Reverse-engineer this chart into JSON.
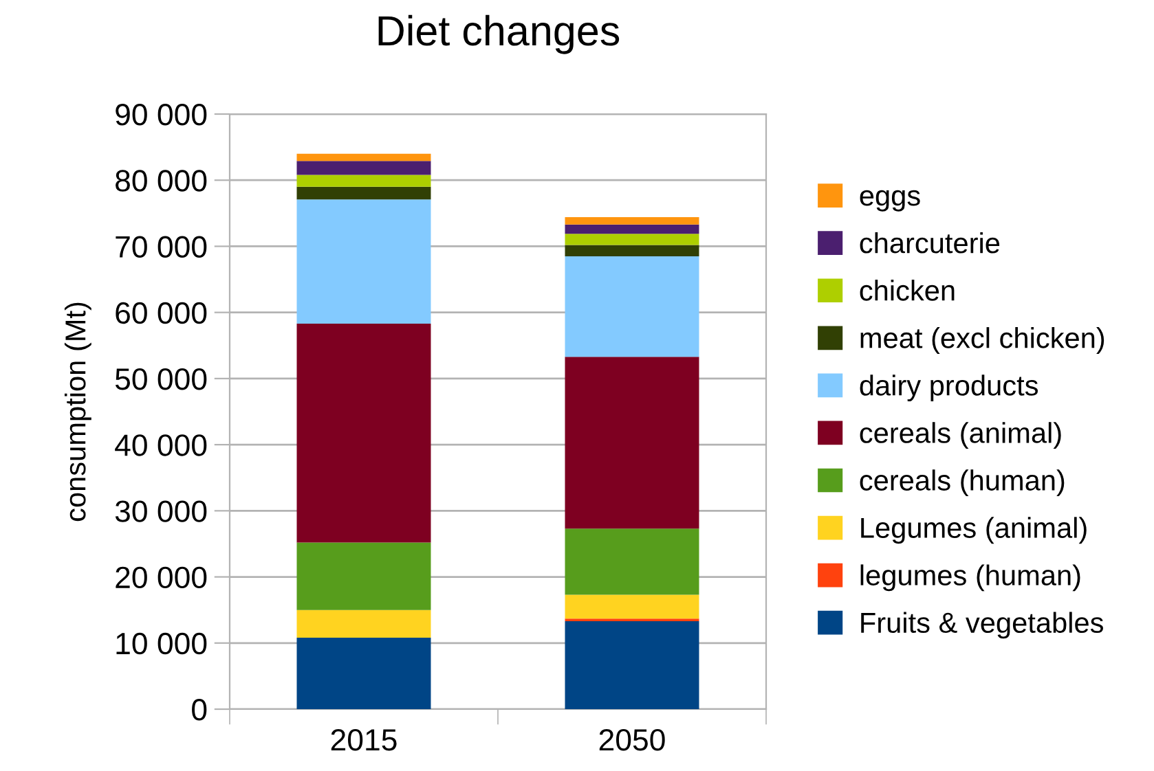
{
  "chart_data": {
    "type": "bar",
    "title": "Diet changes",
    "ylabel": "consumption (Mt)",
    "categories": [
      "2015",
      "2050"
    ],
    "stacked": true,
    "grid": "y",
    "legend": "right",
    "ylim": [
      0,
      90000
    ],
    "yticks": [
      {
        "value": 0,
        "label": "0"
      },
      {
        "value": 10000,
        "label": "10 000"
      },
      {
        "value": 20000,
        "label": "20 000"
      },
      {
        "value": 30000,
        "label": "30 000"
      },
      {
        "value": 40000,
        "label": "40 000"
      },
      {
        "value": 50000,
        "label": "50 000"
      },
      {
        "value": 60000,
        "label": "60 000"
      },
      {
        "value": 70000,
        "label": "70 000"
      },
      {
        "value": 80000,
        "label": "80 000"
      },
      {
        "value": 90000,
        "label": "90 000"
      }
    ],
    "series": [
      {
        "name": "Fruits & vegetables",
        "color": "#004586",
        "values": [
          10800,
          13300
        ]
      },
      {
        "name": "legumes (human)",
        "color": "#ff420e",
        "values": [
          0,
          400
        ]
      },
      {
        "name": "Legumes (animal)",
        "color": "#ffd320",
        "values": [
          4200,
          3600
        ]
      },
      {
        "name": "cereals (human)",
        "color": "#579d1c",
        "values": [
          10200,
          10000
        ]
      },
      {
        "name": "cereals (animal)",
        "color": "#7e0021",
        "values": [
          33100,
          26000
        ]
      },
      {
        "name": "dairy products",
        "color": "#83caff",
        "values": [
          18800,
          15200
        ]
      },
      {
        "name": "meat (excl chicken)",
        "color": "#314004",
        "values": [
          1900,
          1700
        ]
      },
      {
        "name": "chicken",
        "color": "#aecf00",
        "values": [
          1800,
          1700
        ]
      },
      {
        "name": "charcuterie",
        "color": "#4b1f6f",
        "values": [
          2100,
          1400
        ]
      },
      {
        "name": "eggs",
        "color": "#ff950e",
        "values": [
          1100,
          1100
        ]
      }
    ]
  }
}
